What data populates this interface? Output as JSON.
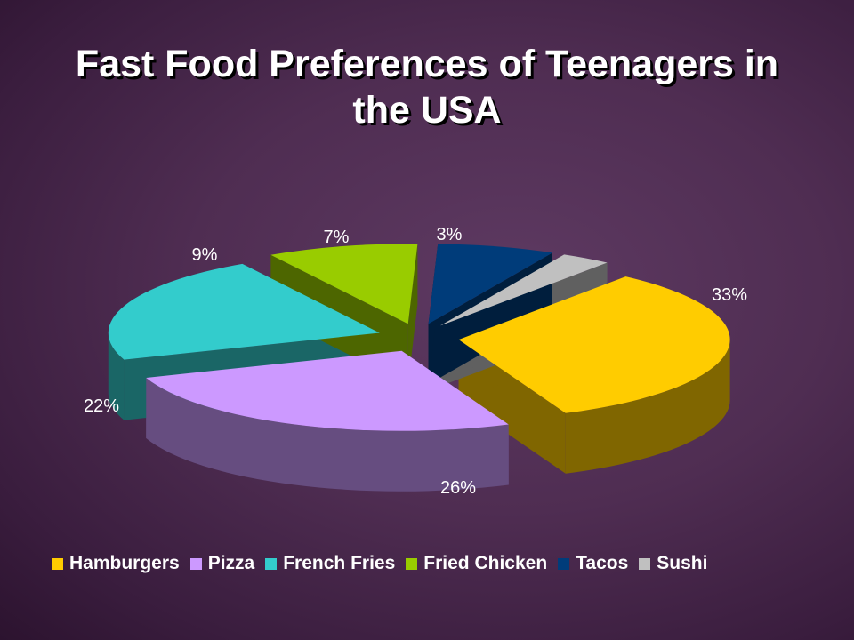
{
  "chart_data": {
    "type": "pie",
    "title_lines": [
      "Fast Food Preferences of Teenagers in",
      "the USA"
    ],
    "legend_position": "bottom",
    "slices": [
      {
        "label": "Hamburgers",
        "value": 33,
        "display": "33%",
        "color": "#ffcc00",
        "side": "#806600"
      },
      {
        "label": "Pizza",
        "value": 26,
        "display": "26%",
        "color": "#cc99ff",
        "side": "#664d80"
      },
      {
        "label": "French Fries",
        "value": 22,
        "display": "22%",
        "color": "#33cccc",
        "side": "#1a6666"
      },
      {
        "label": "Fried Chicken",
        "value": 9,
        "display": "9%",
        "color": "#99cc00",
        "side": "#4d6600"
      },
      {
        "label": "Tacos",
        "value": 7,
        "display": "7%",
        "color": "#003c7a",
        "side": "#001e3d"
      },
      {
        "label": "Sushi",
        "value": 3,
        "display": "3%",
        "color": "#c0c0c0",
        "side": "#606060"
      }
    ]
  }
}
